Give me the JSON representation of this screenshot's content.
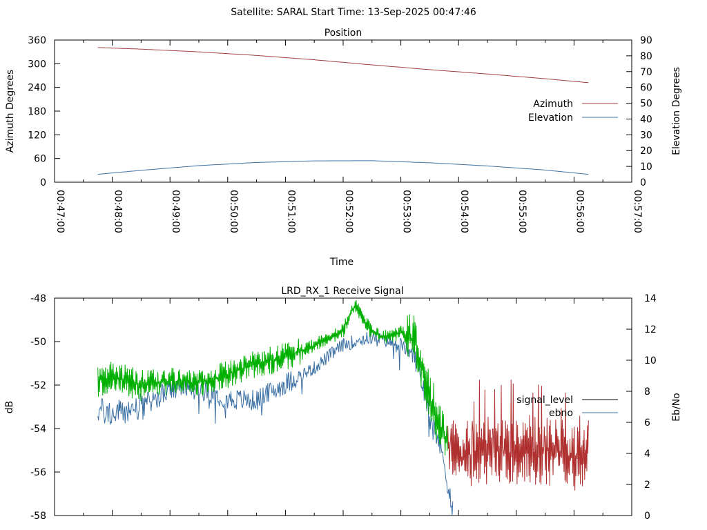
{
  "header": {
    "title": "Satellite: SARAL     Start Time: 13-Sep-2025 00:47:46"
  },
  "colors": {
    "azimuth": "#a03c3c",
    "elevation": "#3a6fa4",
    "signal_green": "#00b000",
    "signal_red": "#b03030",
    "ebno": "#3a6fa4",
    "legend_black": "#000000"
  },
  "chart_data": [
    {
      "type": "line",
      "title": "Position",
      "xlabel": "Time",
      "ylabel": "Azimuth Degrees",
      "y2label": "Elevation Degrees",
      "x_ticks": [
        "00:47:00",
        "00:48:00",
        "00:49:00",
        "00:50:00",
        "00:51:00",
        "00:52:00",
        "00:53:00",
        "00:54:00",
        "00:55:00",
        "00:56:00",
        "00:57:00"
      ],
      "xlim_minutes": [
        0,
        10
      ],
      "ylim": [
        0,
        360
      ],
      "y_ticks": [
        0,
        60,
        120,
        180,
        240,
        300,
        360
      ],
      "y2lim": [
        0,
        90
      ],
      "y2_ticks": [
        0,
        10,
        20,
        30,
        40,
        50,
        60,
        70,
        80,
        90
      ],
      "legend_position": "right",
      "series": [
        {
          "name": "Azimuth",
          "axis": "left",
          "x_minutes": [
            0.75,
            1.5,
            2.5,
            3.5,
            4.5,
            5.5,
            6.5,
            7.5,
            8.5,
            9.25
          ],
          "values": [
            341,
            337,
            330,
            321,
            310,
            297,
            285,
            274,
            262,
            252
          ]
        },
        {
          "name": "Elevation",
          "axis": "right",
          "x_minutes": [
            0.75,
            1.5,
            2.5,
            3.5,
            4.5,
            5.5,
            6.5,
            7.5,
            8.5,
            9.25
          ],
          "values": [
            5,
            7.5,
            10.5,
            12.5,
            13.5,
            13.6,
            12.3,
            10.3,
            7.7,
            5
          ]
        }
      ]
    },
    {
      "type": "line",
      "title": "LRD_RX_1 Receive Signal",
      "ylabel": "dB",
      "y2label": "Eb/No",
      "xlim_minutes": [
        0,
        10
      ],
      "ylim": [
        -58,
        -48
      ],
      "y_ticks": [
        -58,
        -56,
        -54,
        -52,
        -50,
        -48
      ],
      "y2lim": [
        0,
        14
      ],
      "y2_ticks": [
        0,
        2,
        4,
        6,
        8,
        10,
        12,
        14
      ],
      "legend_position": "right",
      "series": [
        {
          "name": "signal_level",
          "axis": "left",
          "x_minutes": [
            0.75,
            1.0,
            1.5,
            2.0,
            2.5,
            3.0,
            3.5,
            4.0,
            4.5,
            5.0,
            5.2,
            5.5,
            5.75,
            6.0,
            6.25,
            6.5,
            6.75,
            7.0,
            7.5,
            8.0,
            8.5,
            9.0,
            9.25
          ],
          "values": [
            -51.8,
            -51.6,
            -52.0,
            -51.8,
            -51.9,
            -51.5,
            -51.0,
            -50.7,
            -50.2,
            -49.5,
            -48.3,
            -49.6,
            -49.8,
            -49.6,
            -50.0,
            -52.5,
            -54.5,
            -55.5,
            -55.0,
            -55.2,
            -55.0,
            -55.3,
            -55.0
          ]
        },
        {
          "name": "ebno",
          "axis": "right",
          "x_minutes": [
            0.75,
            1.0,
            1.5,
            2.0,
            2.5,
            3.0,
            3.5,
            4.0,
            4.5,
            5.0,
            5.5,
            6.0,
            6.25,
            6.5,
            6.75,
            6.9
          ],
          "values": [
            6.8,
            6.5,
            7.0,
            8.1,
            8.2,
            7.5,
            7.4,
            8.5,
            9.5,
            11.0,
            11.5,
            11.0,
            10.2,
            6.8,
            3.5,
            0.2
          ]
        }
      ]
    }
  ]
}
